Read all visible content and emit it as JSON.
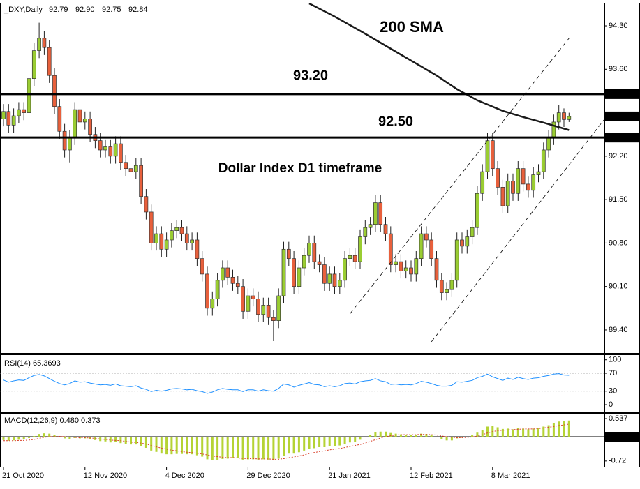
{
  "chart_data": [
    {
      "type": "candlestick",
      "title": "_DXY,Daily",
      "header_values": [
        "92.79",
        "92.90",
        "92.75",
        "92.84"
      ],
      "categories": [
        "21 Oct 2020",
        null,
        null,
        null,
        null,
        null,
        null,
        null,
        null,
        null,
        null,
        null,
        null,
        null,
        null,
        null,
        "12 Nov 2020",
        null,
        null,
        null,
        null,
        null,
        null,
        null,
        null,
        null,
        null,
        null,
        null,
        null,
        null,
        null,
        "4 Dec 2020",
        null,
        null,
        null,
        null,
        null,
        null,
        null,
        null,
        null,
        null,
        null,
        null,
        null,
        null,
        null,
        "29 Dec 2020",
        null,
        null,
        null,
        null,
        null,
        null,
        null,
        null,
        null,
        null,
        null,
        null,
        null,
        null,
        null,
        "21 Jan 2021",
        null,
        null,
        null,
        null,
        null,
        null,
        null,
        null,
        null,
        null,
        null,
        null,
        null,
        null,
        null,
        "12 Feb 2021",
        null,
        null,
        null,
        null,
        null,
        null,
        null,
        null,
        null,
        null,
        null,
        null,
        null,
        null,
        null,
        "8 Mar 2021",
        null,
        null,
        null,
        null,
        null,
        null,
        null,
        null,
        null,
        null,
        null,
        null,
        null,
        null,
        null
      ],
      "open": [
        92.8,
        92.92,
        92.7,
        92.85,
        92.95,
        92.9,
        93.45,
        93.9,
        94.1,
        93.95,
        93.5,
        93.0,
        92.6,
        92.3,
        92.5,
        92.95,
        92.75,
        92.8,
        92.55,
        92.45,
        92.3,
        92.35,
        92.2,
        92.4,
        92.1,
        92.0,
        91.95,
        92.05,
        91.55,
        91.3,
        90.8,
        90.95,
        90.7,
        90.85,
        91.0,
        91.05,
        90.95,
        90.8,
        90.85,
        90.55,
        90.3,
        89.75,
        89.9,
        90.2,
        90.4,
        90.25,
        90.15,
        90.1,
        89.7,
        89.95,
        89.9,
        89.65,
        89.8,
        89.6,
        89.55,
        89.95,
        90.7,
        90.55,
        90.1,
        90.4,
        90.6,
        90.8,
        90.5,
        90.45,
        90.15,
        90.3,
        90.1,
        90.2,
        90.55,
        90.6,
        90.5,
        90.9,
        91.05,
        91.1,
        91.45,
        91.1,
        90.95,
        90.45,
        90.5,
        90.35,
        90.4,
        90.3,
        90.55,
        90.95,
        90.85,
        90.55,
        90.2,
        90.0,
        90.05,
        90.2,
        90.85,
        90.75,
        90.9,
        91.05,
        91.6,
        91.95,
        92.45,
        92.0,
        91.7,
        91.4,
        91.8,
        91.6,
        92.0,
        91.75,
        91.65,
        91.9,
        91.95,
        92.3,
        92.5,
        92.75,
        92.9,
        92.79
      ],
      "high": [
        93.04,
        93.04,
        92.97,
        93.07,
        93.07,
        93.57,
        94.02,
        94.35,
        94.22,
        94.07,
        93.62,
        93.12,
        92.72,
        92.62,
        93.07,
        93.07,
        92.92,
        92.92,
        92.67,
        92.57,
        92.47,
        92.47,
        92.52,
        92.52,
        92.22,
        92.12,
        92.17,
        92.17,
        91.67,
        91.42,
        91.07,
        91.07,
        90.97,
        91.12,
        91.17,
        91.17,
        91.07,
        90.97,
        90.97,
        90.67,
        90.42,
        90.02,
        90.32,
        90.52,
        90.52,
        90.37,
        90.27,
        90.22,
        90.07,
        90.07,
        90.02,
        89.92,
        89.92,
        89.72,
        90.07,
        90.82,
        90.82,
        90.67,
        90.52,
        90.72,
        90.92,
        90.92,
        90.62,
        90.57,
        90.42,
        90.42,
        90.32,
        90.67,
        90.72,
        90.72,
        91.02,
        91.17,
        91.22,
        91.57,
        91.57,
        91.22,
        91.07,
        90.62,
        90.62,
        90.52,
        90.52,
        90.67,
        91.07,
        91.07,
        90.97,
        90.67,
        90.32,
        90.17,
        90.32,
        90.97,
        90.97,
        91.02,
        91.17,
        91.72,
        92.07,
        92.57,
        92.57,
        92.12,
        91.82,
        91.92,
        91.92,
        92.12,
        92.12,
        91.87,
        92.02,
        92.07,
        92.42,
        92.62,
        92.87,
        93.02,
        92.97,
        92.9
      ],
      "low": [
        92.68,
        92.58,
        92.58,
        92.73,
        92.78,
        92.78,
        93.33,
        93.78,
        93.83,
        93.38,
        92.88,
        92.48,
        92.18,
        92.1,
        92.38,
        92.63,
        92.63,
        92.43,
        92.33,
        92.18,
        92.18,
        92.08,
        92.08,
        91.98,
        91.88,
        91.83,
        91.83,
        91.43,
        91.18,
        90.68,
        90.68,
        90.58,
        90.58,
        90.73,
        90.88,
        90.83,
        90.68,
        90.68,
        90.43,
        90.18,
        89.63,
        89.63,
        89.78,
        90.08,
        90.13,
        90.03,
        89.98,
        89.58,
        89.58,
        89.78,
        89.53,
        89.53,
        89.48,
        89.22,
        89.43,
        89.83,
        90.43,
        89.98,
        89.98,
        90.28,
        90.48,
        90.38,
        90.33,
        90.03,
        90.03,
        89.98,
        89.98,
        90.08,
        90.43,
        90.38,
        90.38,
        90.78,
        90.93,
        90.98,
        90.98,
        90.83,
        90.33,
        90.33,
        90.23,
        90.23,
        90.18,
        90.18,
        90.43,
        90.73,
        90.43,
        90.08,
        89.88,
        89.88,
        89.93,
        90.08,
        90.63,
        90.63,
        90.78,
        90.93,
        91.48,
        91.83,
        91.88,
        91.58,
        91.28,
        91.28,
        91.48,
        91.48,
        91.63,
        91.53,
        91.53,
        91.78,
        91.83,
        92.18,
        92.38,
        92.63,
        92.67,
        92.75
      ],
      "close": [
        92.92,
        92.7,
        92.85,
        92.95,
        92.9,
        93.45,
        93.9,
        94.1,
        93.95,
        93.5,
        93.0,
        92.6,
        92.3,
        92.5,
        92.95,
        92.75,
        92.8,
        92.55,
        92.45,
        92.3,
        92.35,
        92.2,
        92.4,
        92.1,
        92.0,
        91.95,
        92.05,
        91.55,
        91.3,
        90.8,
        90.95,
        90.7,
        90.85,
        91.0,
        91.05,
        90.95,
        90.8,
        90.85,
        90.55,
        90.3,
        89.75,
        89.9,
        90.2,
        90.4,
        90.25,
        90.15,
        90.1,
        89.7,
        89.95,
        89.9,
        89.65,
        89.8,
        89.6,
        89.55,
        89.95,
        90.7,
        90.55,
        90.1,
        90.4,
        90.6,
        90.8,
        90.5,
        90.45,
        90.15,
        90.3,
        90.1,
        90.2,
        90.55,
        90.6,
        90.5,
        90.9,
        91.05,
        91.1,
        91.45,
        91.1,
        90.95,
        90.45,
        90.5,
        90.35,
        90.4,
        90.3,
        90.55,
        90.95,
        90.85,
        90.55,
        90.2,
        90.0,
        90.05,
        90.2,
        90.85,
        90.75,
        90.9,
        91.05,
        91.6,
        91.95,
        92.45,
        92.0,
        91.7,
        91.4,
        91.8,
        91.6,
        92.0,
        91.75,
        91.65,
        91.9,
        91.95,
        92.3,
        92.5,
        92.75,
        92.9,
        92.79,
        92.84
      ],
      "up_color": "#9acd32",
      "down_color": "#e8603c",
      "ylim": [
        89.04,
        94.66
      ],
      "yticks": [
        {
          "value": 94.3,
          "label": "94.30"
        },
        {
          "value": 93.6,
          "label": "93.60"
        },
        {
          "value": 92.2,
          "label": "92.20"
        },
        {
          "value": 91.5,
          "label": "91.50"
        },
        {
          "value": 90.8,
          "label": "90.80"
        },
        {
          "value": 90.1,
          "label": "90.10"
        },
        {
          "value": 89.4,
          "label": "89.40"
        }
      ],
      "hlines": [
        {
          "value": 93.2,
          "label": "93.20"
        },
        {
          "value": 92.5,
          "label": "92.50"
        }
      ],
      "sma": {
        "name": "200 SMA",
        "color": "#1a1a1a",
        "x": [
          60,
          65,
          70,
          75,
          80,
          85,
          89,
          93,
          98,
          102,
          106,
          111
        ],
        "values": [
          94.66,
          94.45,
          94.22,
          93.98,
          93.74,
          93.5,
          93.28,
          93.1,
          92.93,
          92.83,
          92.74,
          92.62
        ]
      },
      "channel": [
        {
          "x": [
            68,
            111
          ],
          "y": [
            89.66,
            94.1
          ]
        },
        {
          "x": [
            84,
            118
          ],
          "y": [
            89.21,
            92.8
          ]
        }
      ],
      "annotation": "Dollar Index D1 timeframe"
    },
    {
      "type": "line",
      "title": "RSI(14) 65.3693",
      "color": "#1e90ff",
      "values": [
        55,
        50,
        53,
        55,
        54,
        60,
        65,
        67,
        64,
        58,
        52,
        47,
        44,
        47,
        53,
        50,
        51,
        48,
        46,
        44,
        45,
        43,
        46,
        42,
        41,
        40,
        42,
        37,
        34,
        29,
        32,
        30,
        32,
        35,
        36,
        35,
        33,
        34,
        31,
        29,
        25,
        28,
        33,
        36,
        34,
        33,
        33,
        29,
        33,
        33,
        30,
        33,
        31,
        30,
        36,
        46,
        44,
        39,
        43,
        46,
        49,
        45,
        44,
        40,
        42,
        40,
        42,
        47,
        48,
        46,
        51,
        53,
        54,
        58,
        53,
        51,
        45,
        46,
        44,
        45,
        44,
        47,
        52,
        50,
        47,
        43,
        41,
        41,
        43,
        51,
        50,
        52,
        54,
        60,
        63,
        68,
        62,
        58,
        54,
        59,
        56,
        61,
        58,
        56,
        59,
        60,
        63,
        65,
        68,
        69,
        66,
        65.3693
      ],
      "ylim": [
        -15.5,
        108.9
      ],
      "yticks": [
        100,
        70,
        30,
        0
      ],
      "levels": [
        70,
        30
      ]
    },
    {
      "type": "bar",
      "title": "MACD(12,26,9) 0.480 0.373",
      "color": "#b5d334",
      "signal_color": "#d9402a",
      "zero_line": true,
      "values": [
        -0.1,
        -0.12,
        -0.11,
        -0.09,
        -0.08,
        -0.04,
        0.02,
        0.08,
        0.1,
        0.09,
        0.05,
        0.0,
        -0.05,
        -0.07,
        -0.04,
        -0.05,
        -0.05,
        -0.08,
        -0.1,
        -0.13,
        -0.14,
        -0.17,
        -0.16,
        -0.19,
        -0.21,
        -0.23,
        -0.23,
        -0.28,
        -0.33,
        -0.41,
        -0.45,
        -0.5,
        -0.52,
        -0.52,
        -0.51,
        -0.51,
        -0.52,
        -0.52,
        -0.55,
        -0.59,
        -0.67,
        -0.7,
        -0.69,
        -0.66,
        -0.65,
        -0.64,
        -0.64,
        -0.68,
        -0.67,
        -0.67,
        -0.68,
        -0.67,
        -0.68,
        -0.69,
        -0.65,
        -0.56,
        -0.5,
        -0.5,
        -0.46,
        -0.41,
        -0.36,
        -0.34,
        -0.31,
        -0.31,
        -0.28,
        -0.28,
        -0.26,
        -0.21,
        -0.17,
        -0.15,
        -0.09,
        -0.02,
        0.05,
        0.13,
        0.15,
        0.15,
        0.11,
        0.09,
        0.07,
        0.05,
        0.05,
        0.06,
        0.09,
        0.08,
        0.04,
        -0.02,
        -0.08,
        -0.11,
        -0.11,
        -0.05,
        -0.03,
        0.0,
        0.04,
        0.12,
        0.2,
        0.3,
        0.31,
        0.28,
        0.23,
        0.24,
        0.22,
        0.26,
        0.24,
        0.22,
        0.24,
        0.25,
        0.3,
        0.34,
        0.4,
        0.45,
        0.47,
        0.48
      ],
      "signal": [
        -0.12,
        -0.12,
        -0.12,
        -0.11,
        -0.11,
        -0.1,
        -0.08,
        -0.05,
        -0.02,
        0.0,
        0.01,
        0.01,
        0.0,
        -0.01,
        -0.02,
        -0.03,
        -0.03,
        -0.04,
        -0.05,
        -0.07,
        -0.08,
        -0.1,
        -0.11,
        -0.12,
        -0.14,
        -0.16,
        -0.17,
        -0.19,
        -0.22,
        -0.26,
        -0.3,
        -0.34,
        -0.37,
        -0.4,
        -0.42,
        -0.44,
        -0.46,
        -0.47,
        -0.49,
        -0.51,
        -0.54,
        -0.57,
        -0.59,
        -0.61,
        -0.62,
        -0.62,
        -0.63,
        -0.64,
        -0.65,
        -0.65,
        -0.66,
        -0.66,
        -0.66,
        -0.67,
        -0.67,
        -0.65,
        -0.62,
        -0.6,
        -0.57,
        -0.54,
        -0.5,
        -0.47,
        -0.44,
        -0.42,
        -0.39,
        -0.37,
        -0.35,
        -0.32,
        -0.29,
        -0.26,
        -0.23,
        -0.19,
        -0.14,
        -0.09,
        -0.04,
        0.0,
        0.03,
        0.05,
        0.06,
        0.06,
        0.06,
        0.06,
        0.07,
        0.07,
        0.06,
        0.05,
        0.02,
        0.0,
        -0.02,
        -0.03,
        -0.03,
        -0.02,
        -0.01,
        0.02,
        0.06,
        0.11,
        0.15,
        0.18,
        0.19,
        0.2,
        0.21,
        0.22,
        0.23,
        0.23,
        0.23,
        0.24,
        0.26,
        0.28,
        0.3,
        0.33,
        0.35,
        0.373
      ],
      "ylim": [
        -0.868,
        0.682
      ],
      "yticks": [
        0.537,
        {
          "value": 0,
          "label": "0.00"
        },
        -0.72
      ]
    }
  ]
}
